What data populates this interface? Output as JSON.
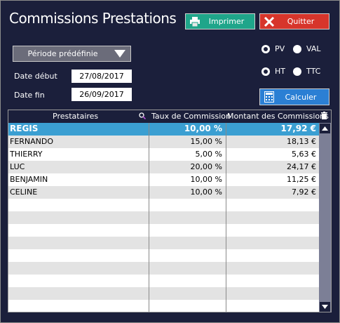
{
  "window": {
    "title": "Commissions Prestations"
  },
  "toolbar": {
    "print_label": "Imprimer",
    "quit_label": "Quitter",
    "calc_label": "Calculer",
    "print_icon": "printer-icon",
    "quit_icon": "close-x-icon",
    "calc_icon": "calculator-icon"
  },
  "period": {
    "dropdown_label": "Période prédéfinie",
    "start_label": "Date début",
    "start_value": "27/08/2017",
    "end_label": "Date fin",
    "end_value": "26/09/2017"
  },
  "options": {
    "pv_label": "PV",
    "val_label": "VAL",
    "ht_label": "HT",
    "ttc_label": "TTC",
    "pv_selected": true,
    "ht_selected": true
  },
  "table": {
    "headers": {
      "prestataires": "Prestataires",
      "taux": "Taux de Commission",
      "montant": "Montant des Commissions"
    },
    "rows": [
      {
        "name": "REGIS",
        "taux": "10,00 %",
        "montant": "17,92 €"
      },
      {
        "name": "FERNANDO",
        "taux": "15,00 %",
        "montant": "18,13 €"
      },
      {
        "name": "THIERRY",
        "taux": "5,00 %",
        "montant": "5,63 €"
      },
      {
        "name": "LUC",
        "taux": "20,00 %",
        "montant": "24,17 €"
      },
      {
        "name": "BENJAMIN",
        "taux": "10,00 %",
        "montant": "11,25 €"
      },
      {
        "name": "CELINE",
        "taux": "10,00 %",
        "montant": "7,92 €"
      }
    ]
  },
  "colors": {
    "background": "#1b1f3b",
    "print_button": "#1fa58a",
    "quit_button": "#d7352b",
    "calc_button": "#2b7fd4",
    "selected_row": "#3b9fd2"
  }
}
